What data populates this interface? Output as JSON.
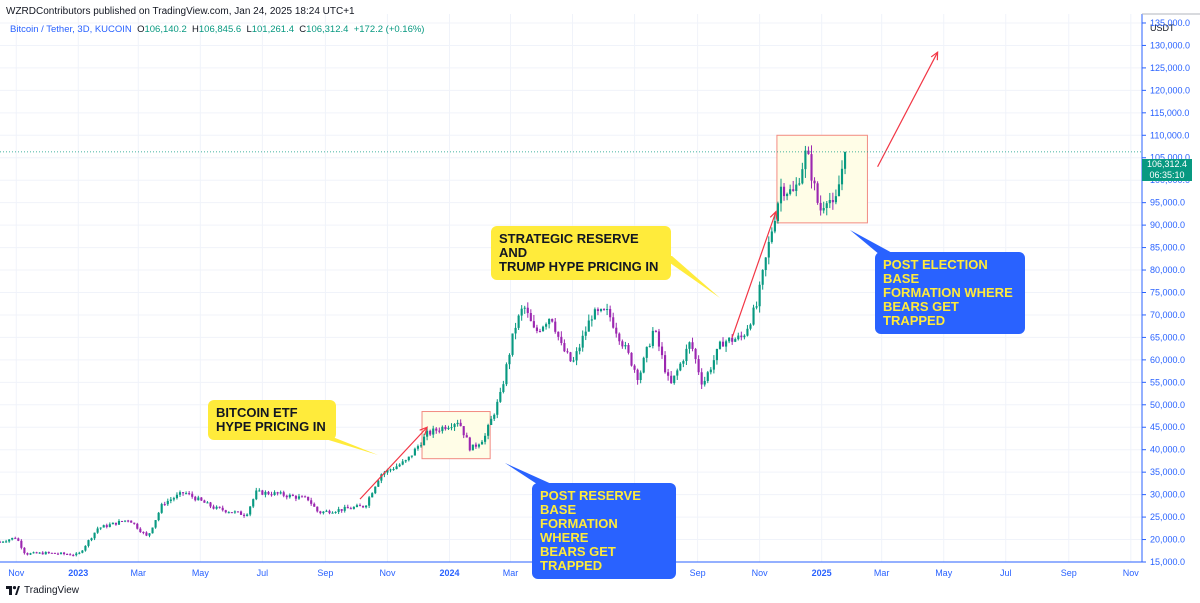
{
  "header": {
    "publisher": "WZRDContributors published on TradingView.com, Jan 24, 2025 18:24 UTC+1",
    "symbol": "Bitcoin / Tether, 3D, KUCOIN",
    "ohlc": {
      "open_label": "O",
      "open": "106,140.2",
      "high_label": "H",
      "high": "106,845.6",
      "low_label": "L",
      "low": "101,261.4",
      "close_label": "C",
      "close": "106,312.4",
      "change": "+172.2 (+0.16%)"
    }
  },
  "price_tag": {
    "price": "106,312.4",
    "countdown": "06:35:10"
  },
  "footer": {
    "brand": "TradingView"
  },
  "colors": {
    "up": "#089981",
    "down": "#9c27b0",
    "axis_text": "#2962ff",
    "arrow": "#f23645",
    "zone_fill": "#fffde7",
    "zone_border": "#f28b82"
  },
  "annotations": [
    {
      "id": "etf",
      "text": "BITCOIN ETF\nHYPE PRICING IN",
      "style": "yellow"
    },
    {
      "id": "reserve",
      "text": "STRATEGIC RESERVE AND\nTRUMP HYPE PRICING IN",
      "style": "yellow"
    },
    {
      "id": "post-reserve",
      "text": "POST RESERVE BASE\nFORMATION WHERE\nBEARS GET TRAPPED",
      "style": "blue"
    },
    {
      "id": "post-election",
      "text": "POST ELECTION BASE\nFORMATION WHERE\nBEARS GET TRAPPED",
      "style": "blue"
    }
  ],
  "chart_data": {
    "type": "candlestick",
    "currency": "USDT",
    "ylim": [
      15000,
      137000
    ],
    "y_ticks": [
      15000,
      20000,
      25000,
      30000,
      35000,
      40000,
      45000,
      50000,
      55000,
      60000,
      65000,
      70000,
      75000,
      80000,
      85000,
      90000,
      95000,
      100000,
      105000,
      110000,
      115000,
      120000,
      125000,
      130000,
      135000
    ],
    "y_tick_labels": [
      "15,000.0",
      "20,000.0",
      "25,000.0",
      "30,000.0",
      "35,000.0",
      "40,000.0",
      "45,000.0",
      "50,000.0",
      "55,000.0",
      "60,000.0",
      "65,000.0",
      "70,000.0",
      "75,000.0",
      "80,000.0",
      "85,000.0",
      "90,000.0",
      "95,000.0",
      "100,000.0",
      "105,000.0",
      "110,000.0",
      "115,000.0",
      "120,000.0",
      "125,000.0",
      "130,000.0",
      "135,000.0"
    ],
    "x_range": [
      "2022-10-16",
      "2025-11-12"
    ],
    "x_ticks": [
      {
        "date": "2022-11-01",
        "label": "Nov",
        "bold": false
      },
      {
        "date": "2023-01-01",
        "label": "2023",
        "bold": true
      },
      {
        "date": "2023-03-01",
        "label": "Mar",
        "bold": false
      },
      {
        "date": "2023-05-01",
        "label": "May",
        "bold": false
      },
      {
        "date": "2023-07-01",
        "label": "Jul",
        "bold": false
      },
      {
        "date": "2023-09-01",
        "label": "Sep",
        "bold": false
      },
      {
        "date": "2023-11-01",
        "label": "Nov",
        "bold": false
      },
      {
        "date": "2024-01-01",
        "label": "2024",
        "bold": true
      },
      {
        "date": "2024-03-01",
        "label": "Mar",
        "bold": false
      },
      {
        "date": "2024-05-01",
        "label": "May",
        "bold": false
      },
      {
        "date": "2024-07-01",
        "label": "Jul",
        "bold": false
      },
      {
        "date": "2024-09-01",
        "label": "Sep",
        "bold": false
      },
      {
        "date": "2024-11-01",
        "label": "Nov",
        "bold": false
      },
      {
        "date": "2025-01-01",
        "label": "2025",
        "bold": true
      },
      {
        "date": "2025-03-01",
        "label": "Mar",
        "bold": false
      },
      {
        "date": "2025-05-01",
        "label": "May",
        "bold": false
      },
      {
        "date": "2025-07-01",
        "label": "Jul",
        "bold": false
      },
      {
        "date": "2025-09-01",
        "label": "Sep",
        "bold": false
      },
      {
        "date": "2025-11-01",
        "label": "Nov",
        "bold": false
      }
    ],
    "last_price": 106312.4,
    "price_anchors": [
      [
        "2022-10-16",
        19500
      ],
      [
        "2022-11-01",
        20500
      ],
      [
        "2022-11-10",
        16800
      ],
      [
        "2022-12-01",
        17000
      ],
      [
        "2023-01-01",
        16600
      ],
      [
        "2023-01-20",
        22500
      ],
      [
        "2023-02-20",
        24500
      ],
      [
        "2023-03-10",
        20500
      ],
      [
        "2023-03-25",
        28000
      ],
      [
        "2023-04-15",
        30500
      ],
      [
        "2023-05-15",
        27000
      ],
      [
        "2023-06-15",
        25500
      ],
      [
        "2023-06-25",
        30500
      ],
      [
        "2023-07-15",
        30200
      ],
      [
        "2023-08-15",
        29000
      ],
      [
        "2023-08-25",
        26000
      ],
      [
        "2023-09-20",
        26800
      ],
      [
        "2023-10-10",
        27500
      ],
      [
        "2023-10-25",
        34500
      ],
      [
        "2023-11-20",
        37500
      ],
      [
        "2023-12-10",
        43500
      ],
      [
        "2024-01-10",
        46500
      ],
      [
        "2024-01-22",
        40000
      ],
      [
        "2024-02-05",
        43000
      ],
      [
        "2024-02-20",
        52000
      ],
      [
        "2024-03-05",
        67000
      ],
      [
        "2024-03-14",
        72000
      ],
      [
        "2024-03-25",
        66000
      ],
      [
        "2024-04-10",
        70000
      ],
      [
        "2024-04-20",
        63000
      ],
      [
        "2024-05-01",
        59000
      ],
      [
        "2024-05-20",
        70000
      ],
      [
        "2024-06-05",
        70500
      ],
      [
        "2024-06-25",
        61000
      ],
      [
        "2024-07-05",
        56000
      ],
      [
        "2024-07-20",
        67000
      ],
      [
        "2024-08-05",
        54000
      ],
      [
        "2024-08-25",
        64000
      ],
      [
        "2024-09-06",
        54500
      ],
      [
        "2024-09-25",
        64000
      ],
      [
        "2024-10-15",
        65000
      ],
      [
        "2024-10-29",
        72000
      ],
      [
        "2024-11-12",
        88000
      ],
      [
        "2024-11-22",
        98500
      ],
      [
        "2024-12-05",
        97000
      ],
      [
        "2024-12-17",
        106500
      ],
      [
        "2024-12-30",
        93000
      ],
      [
        "2025-01-07",
        97000
      ],
      [
        "2025-01-13",
        93000
      ],
      [
        "2025-01-24",
        106312
      ]
    ],
    "zones": [
      {
        "x0": "2023-12-05",
        "x1": "2024-02-10",
        "y0": 38000,
        "y1": 48500
      },
      {
        "x0": "2024-11-18",
        "x1": "2025-02-15",
        "y0": 90500,
        "y1": 110000
      }
    ],
    "arrows": [
      {
        "from": [
          "2023-10-05",
          29000
        ],
        "to": [
          "2023-12-10",
          45000
        ]
      },
      {
        "from": [
          "2024-10-05",
          65000
        ],
        "to": [
          "2024-11-17",
          93000
        ]
      },
      {
        "from": [
          "2025-02-25",
          103000
        ],
        "to": [
          "2025-04-25",
          128500
        ]
      }
    ]
  }
}
